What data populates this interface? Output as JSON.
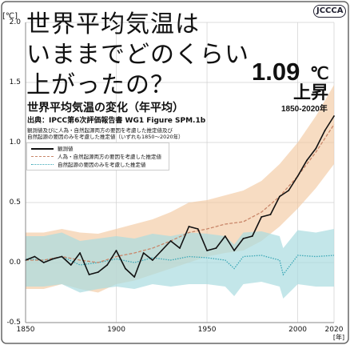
{
  "logo_text": "JCCCA",
  "headline": {
    "line1": "世界平均気温は",
    "line2": "いままでどのくらい",
    "line3": "上がったの？"
  },
  "highlight": {
    "value": "1.09",
    "unit": "℃",
    "label": "上昇",
    "period": "1850-2020年"
  },
  "colors": {
    "observed": "#111111",
    "combined": "#c9876a",
    "combined_band": "#f3c9a2",
    "natural": "#3aa7b6",
    "natural_band": "#a9dbe0",
    "border": "#666666"
  },
  "chart_data": {
    "type": "line",
    "title": "世界平均気温の変化（年平均）",
    "source": "出典：IPCC第6次評価報告書 WG1 Figure SPM.1b",
    "note_line1": "観測値及びに人為・自然起源両方の要因を考慮した推定値及び",
    "note_line2": "自然起源の要因のみを考慮した推定値（いずれも1850～2020年）",
    "unit_label": "[℃]",
    "xlabel_unit": "[年]",
    "xlim": [
      1850,
      2020
    ],
    "ylim": [
      -0.5,
      2.0
    ],
    "y_ticks": [
      "2.0",
      "1.5",
      "1.0",
      "0.5",
      "0.0",
      "-0.5"
    ],
    "x_ticks": [
      "1850",
      "1900",
      "1950",
      "2000",
      "2020"
    ],
    "grid": true,
    "legend_position": "top-left",
    "series": [
      {
        "name": "観測値",
        "style": "solid",
        "x": [
          1850,
          1855,
          1860,
          1865,
          1870,
          1875,
          1880,
          1885,
          1890,
          1895,
          1900,
          1905,
          1910,
          1915,
          1920,
          1925,
          1930,
          1935,
          1940,
          1945,
          1950,
          1955,
          1960,
          1965,
          1970,
          1975,
          1980,
          1985,
          1990,
          1995,
          2000,
          2005,
          2010,
          2015,
          2020
        ],
        "y": [
          0.02,
          0.05,
          0.0,
          0.03,
          0.05,
          -0.02,
          0.08,
          -0.1,
          -0.08,
          -0.02,
          0.1,
          -0.05,
          -0.12,
          0.08,
          0.02,
          0.1,
          0.18,
          0.12,
          0.3,
          0.28,
          0.1,
          0.12,
          0.22,
          0.1,
          0.2,
          0.22,
          0.38,
          0.4,
          0.55,
          0.6,
          0.72,
          0.85,
          0.95,
          1.1,
          1.22
        ]
      },
      {
        "name": "人為・自然起源両方の要因を考慮した推定値",
        "style": "dashed",
        "x": [
          1850,
          1860,
          1870,
          1880,
          1890,
          1900,
          1910,
          1920,
          1930,
          1940,
          1950,
          1960,
          1970,
          1980,
          1990,
          2000,
          2010,
          2020
        ],
        "y": [
          0.02,
          0.02,
          0.05,
          0.02,
          0.0,
          0.05,
          0.08,
          0.12,
          0.18,
          0.25,
          0.28,
          0.32,
          0.34,
          0.42,
          0.55,
          0.72,
          0.92,
          1.15
        ],
        "band_low": [
          -0.22,
          -0.22,
          -0.18,
          -0.22,
          -0.25,
          -0.18,
          -0.15,
          -0.1,
          -0.05,
          0.0,
          0.05,
          0.08,
          0.1,
          0.18,
          0.3,
          0.45,
          0.62,
          0.82
        ],
        "band_high": [
          0.25,
          0.25,
          0.28,
          0.25,
          0.24,
          0.28,
          0.32,
          0.36,
          0.42,
          0.5,
          0.52,
          0.56,
          0.6,
          0.68,
          0.82,
          1.0,
          1.22,
          1.48
        ]
      },
      {
        "name": "自然起源の要因のみを考慮した推定値",
        "style": "dotted",
        "x": [
          1850,
          1860,
          1870,
          1880,
          1890,
          1900,
          1910,
          1920,
          1930,
          1940,
          1950,
          1960,
          1965,
          1970,
          1980,
          1990,
          1992,
          2000,
          2010,
          2020
        ],
        "y": [
          0.03,
          0.02,
          0.05,
          -0.02,
          0.0,
          0.03,
          0.0,
          0.04,
          0.02,
          0.05,
          0.04,
          0.02,
          -0.05,
          0.05,
          0.06,
          0.02,
          -0.1,
          0.06,
          0.05,
          0.06
        ],
        "band_low": [
          -0.2,
          -0.2,
          -0.18,
          -0.25,
          -0.22,
          -0.2,
          -0.22,
          -0.18,
          -0.2,
          -0.18,
          -0.18,
          -0.2,
          -0.28,
          -0.18,
          -0.16,
          -0.2,
          -0.3,
          -0.18,
          -0.2,
          -0.2
        ],
        "band_high": [
          0.22,
          0.22,
          0.25,
          0.18,
          0.2,
          0.22,
          0.2,
          0.24,
          0.22,
          0.25,
          0.24,
          0.22,
          0.15,
          0.25,
          0.26,
          0.22,
          0.12,
          0.27,
          0.25,
          0.28
        ]
      }
    ]
  }
}
